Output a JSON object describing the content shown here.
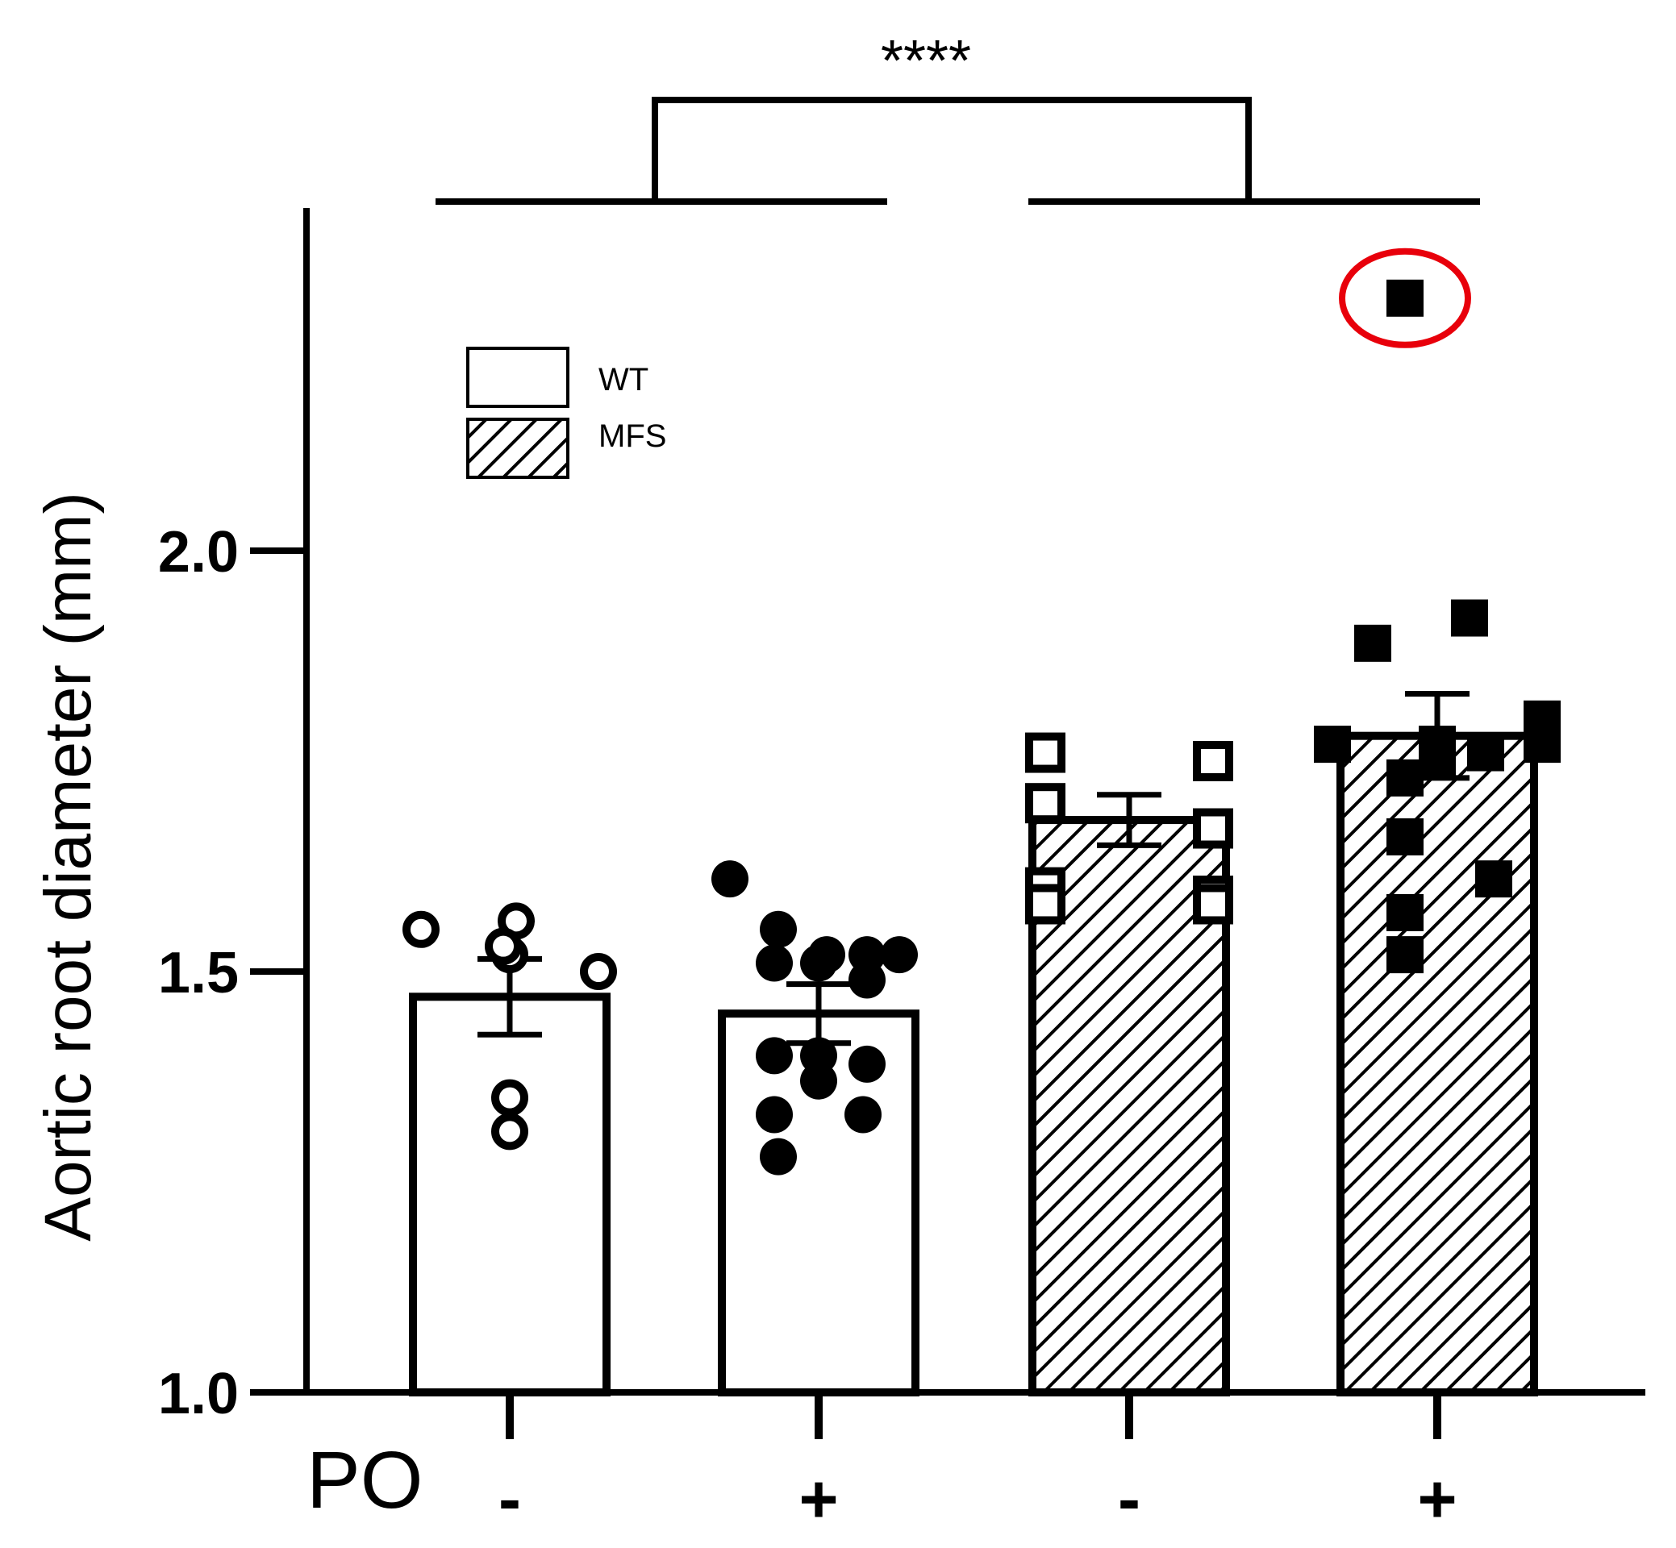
{
  "chart_data": {
    "type": "bar",
    "ylabel": "Aortic root diameter (mm)",
    "xlabel": "PO",
    "ylim": [
      1.0,
      2.4
    ],
    "yticks": [
      {
        "value": 1.0,
        "label": "1.0"
      },
      {
        "value": 1.5,
        "label": "1.5"
      },
      {
        "value": 2.0,
        "label": "2.0"
      }
    ],
    "categories": [
      "-",
      "+",
      "-",
      "+"
    ],
    "legend": {
      "placement": "top-left",
      "items": [
        {
          "label": "WT",
          "pattern": "open"
        },
        {
          "label": "MFS",
          "pattern": "hatched"
        }
      ]
    },
    "significance": "****",
    "bars": [
      {
        "group": "WT",
        "po": "-",
        "mean": 1.47,
        "sem": 0.045,
        "marker": "open-circle",
        "points": [
          1.55,
          1.56,
          1.52,
          1.5,
          1.53,
          1.35,
          1.31
        ]
      },
      {
        "group": "WT",
        "po": "+",
        "mean": 1.45,
        "sem": 0.035,
        "marker": "filled-circle",
        "points": [
          1.61,
          1.55,
          1.52,
          1.52,
          1.52,
          1.51,
          1.51,
          1.49,
          1.4,
          1.4,
          1.39,
          1.37,
          1.33,
          1.33,
          1.28
        ]
      },
      {
        "group": "MFS",
        "po": "-",
        "mean": 1.68,
        "sem": 0.03,
        "marker": "open-square",
        "points": [
          1.76,
          1.75,
          1.7,
          1.67,
          1.6,
          1.59,
          1.58,
          1.58
        ]
      },
      {
        "group": "MFS",
        "po": "+",
        "mean": 1.78,
        "sem": 0.05,
        "marker": "filled-square",
        "points": [
          2.3,
          1.92,
          1.89,
          1.8,
          1.77,
          1.77,
          1.77,
          1.76,
          1.75,
          1.73,
          1.66,
          1.61,
          1.57,
          1.52
        ],
        "circled_point": 2.3
      }
    ],
    "accent_color": "#e8000b"
  }
}
